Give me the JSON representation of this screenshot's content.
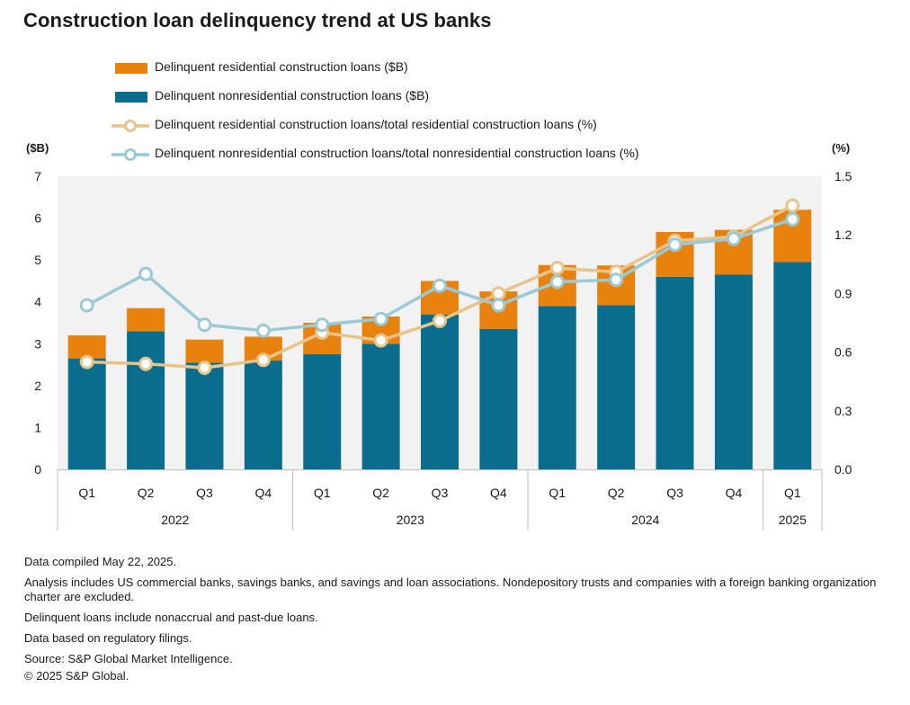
{
  "title": "Construction loan delinquency trend at US banks",
  "legend": [
    {
      "label": "Delinquent residential construction loans ($B)",
      "kind": "box",
      "color": "#e8820e"
    },
    {
      "label": "Delinquent nonresidential construction loans ($B)",
      "kind": "box",
      "color": "#0a6d8e"
    },
    {
      "label": "Delinquent residential construction loans/total residential construction loans (%)",
      "kind": "line",
      "color": "#e6c48a"
    },
    {
      "label": "Delinquent nonresidential construction loans/total nonresidential construction loans (%)",
      "kind": "line",
      "color": "#9cc9d6"
    }
  ],
  "left_unit": "($B)",
  "right_unit": "(%)",
  "chart_data": {
    "type": "bar",
    "stacked": true,
    "categories": [
      "Q1",
      "Q2",
      "Q3",
      "Q4",
      "Q1",
      "Q2",
      "Q3",
      "Q4",
      "Q1",
      "Q2",
      "Q3",
      "Q4",
      "Q1"
    ],
    "year_groups": [
      {
        "label": "2022",
        "count": 4
      },
      {
        "label": "2023",
        "count": 4
      },
      {
        "label": "2024",
        "count": 4
      },
      {
        "label": "2025",
        "count": 1
      }
    ],
    "series": [
      {
        "name": "Delinquent nonresidential construction loans ($B)",
        "axis": "left",
        "type": "bar",
        "color": "#0a6d8e",
        "values": [
          2.65,
          3.3,
          2.55,
          2.6,
          2.75,
          3.0,
          3.7,
          3.35,
          3.9,
          3.92,
          4.6,
          4.65,
          4.95
        ]
      },
      {
        "name": "Delinquent residential construction loans ($B)",
        "axis": "left",
        "type": "bar",
        "color": "#e8820e",
        "values": [
          0.55,
          0.55,
          0.55,
          0.57,
          0.75,
          0.65,
          0.8,
          0.9,
          0.98,
          0.95,
          1.07,
          1.07,
          1.25
        ]
      },
      {
        "name": "Delinquent residential construction loans/total residential construction loans (%)",
        "axis": "right",
        "type": "line",
        "color": "#e6c48a",
        "values": [
          0.55,
          0.54,
          0.52,
          0.56,
          0.7,
          0.66,
          0.76,
          0.9,
          1.03,
          1.01,
          1.17,
          1.19,
          1.35
        ]
      },
      {
        "name": "Delinquent nonresidential construction loans/total nonresidential construction loans (%)",
        "axis": "right",
        "type": "line",
        "color": "#9cc9d6",
        "values": [
          0.84,
          1.0,
          0.74,
          0.71,
          0.74,
          0.77,
          0.94,
          0.84,
          0.96,
          0.97,
          1.15,
          1.18,
          1.28
        ]
      }
    ],
    "ylim_left": [
      0,
      7
    ],
    "yticks_left": [
      "0",
      "1",
      "2",
      "3",
      "4",
      "5",
      "6",
      "7"
    ],
    "ylim_right": [
      0,
      1.5
    ],
    "yticks_right": [
      "0.0",
      "0.3",
      "0.6",
      "0.9",
      "1.2",
      "1.5"
    ],
    "grid": false,
    "legend_position": "top"
  },
  "notes": [
    "Data compiled May 22, 2025.",
    "Analysis includes US commercial banks, savings banks, and savings and loan associations. Nondepository trusts and companies with a foreign banking organization charter are excluded.",
    "Delinquent loans include nonaccrual and past-due loans.",
    "Data based on regulatory filings.",
    "Source: S&P Global Market Intelligence.",
    "© 2025 S&P Global."
  ]
}
